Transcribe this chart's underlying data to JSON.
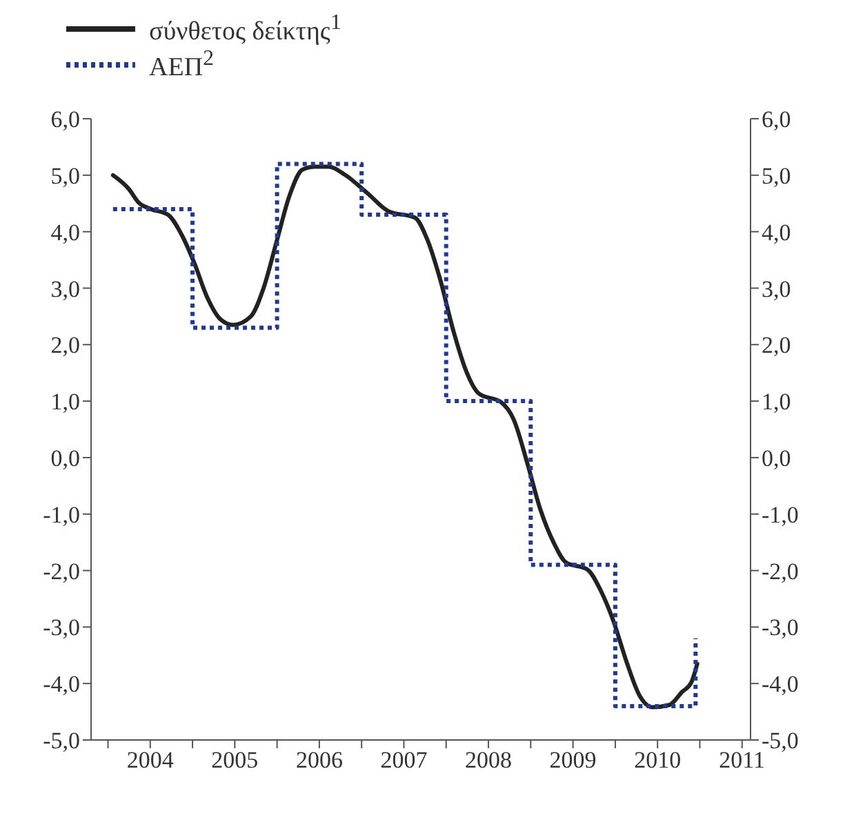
{
  "chart_data": {
    "type": "line",
    "legend": "top left",
    "grid": false,
    "xlim": [
      2003.8,
      2011.6
    ],
    "xticks": [
      {
        "value": 2004,
        "label": null
      },
      {
        "value": 2004.5,
        "label": "2004"
      },
      {
        "value": 2005,
        "label": null
      },
      {
        "value": 2005.5,
        "label": "2005"
      },
      {
        "value": 2006,
        "label": null
      },
      {
        "value": 2006.5,
        "label": "2006"
      },
      {
        "value": 2007,
        "label": null
      },
      {
        "value": 2007.5,
        "label": "2007"
      },
      {
        "value": 2008,
        "label": null
      },
      {
        "value": 2008.5,
        "label": "2008"
      },
      {
        "value": 2009,
        "label": null
      },
      {
        "value": 2009.5,
        "label": "2009"
      },
      {
        "value": 2010,
        "label": null
      },
      {
        "value": 2010.5,
        "label": "2010"
      },
      {
        "value": 2011,
        "label": null
      },
      {
        "value": 2011.5,
        "label": "2011"
      }
    ],
    "ylim": [
      -5,
      6
    ],
    "yticks": [
      {
        "value": 6,
        "label": "6,0"
      },
      {
        "value": 5,
        "label": "5,0"
      },
      {
        "value": 4,
        "label": "4,0"
      },
      {
        "value": 3,
        "label": "3,0"
      },
      {
        "value": 2,
        "label": "2,0"
      },
      {
        "value": 1,
        "label": "1,0"
      },
      {
        "value": 0,
        "label": "0,0"
      },
      {
        "value": -1,
        "label": "-1,0"
      },
      {
        "value": -2,
        "label": "-2,0"
      },
      {
        "value": -3,
        "label": "-3,0"
      },
      {
        "value": -4,
        "label": "-4,0"
      },
      {
        "value": -5,
        "label": "-5,0"
      }
    ],
    "y2lim": [
      -5,
      6
    ],
    "y2ticks": [
      {
        "value": 6,
        "label": "6,0"
      },
      {
        "value": 5,
        "label": "5,0"
      },
      {
        "value": 4,
        "label": "4,0"
      },
      {
        "value": 3,
        "label": "3,0"
      },
      {
        "value": 2,
        "label": "2,0"
      },
      {
        "value": 1,
        "label": "1,0"
      },
      {
        "value": 0,
        "label": "0,0"
      },
      {
        "value": -1,
        "label": "-1,0"
      },
      {
        "value": -2,
        "label": "-2,0"
      },
      {
        "value": -3,
        "label": "-3,0"
      },
      {
        "value": -4,
        "label": "-4,0"
      },
      {
        "value": -5,
        "label": "-5,0"
      }
    ],
    "series": [
      {
        "name": "σύνθετος δείκτης$^{1}$",
        "color": "#222222",
        "line_style": "solid",
        "x": [
          2004.06,
          2004.25,
          2004.36,
          2004.51,
          2004.71,
          2004.87,
          2005.02,
          2005.17,
          2005.33,
          2005.48,
          2005.69,
          2005.84,
          2005.99,
          2006.15,
          2006.3,
          2006.45,
          2006.61,
          2006.81,
          2007.07,
          2007.32,
          2007.63,
          2007.78,
          2007.93,
          2008.09,
          2008.24,
          2008.39,
          2008.65,
          2008.8,
          2008.96,
          2009.11,
          2009.27,
          2009.42,
          2009.67,
          2009.83,
          2009.98,
          2010.13,
          2010.29,
          2010.44,
          2010.64,
          2010.79,
          2010.9,
          2010.97
        ],
        "values": [
          5.0,
          4.75,
          4.52,
          4.4,
          4.3,
          3.95,
          3.45,
          2.85,
          2.45,
          2.35,
          2.5,
          3.0,
          3.8,
          4.65,
          5.1,
          5.15,
          5.15,
          5.0,
          4.68,
          4.36,
          4.25,
          3.85,
          3.15,
          2.22,
          1.52,
          1.13,
          0.98,
          0.67,
          -0.1,
          -0.9,
          -1.5,
          -1.86,
          -1.98,
          -2.36,
          -2.9,
          -3.6,
          -4.22,
          -4.42,
          -4.38,
          -4.15,
          -3.98,
          -3.65
        ]
      },
      {
        "name": "ΑΕΠ$^{2}$",
        "type": "step",
        "color": "#1f3a93",
        "line_style": "dotted",
        "x": [
          2004.06,
          2005,
          2006,
          2007,
          2008,
          2009,
          2010,
          2010.95
        ],
        "values": [
          4.4,
          2.3,
          5.2,
          4.3,
          1.0,
          -1.9,
          -4.4,
          -3.2
        ]
      }
    ]
  }
}
